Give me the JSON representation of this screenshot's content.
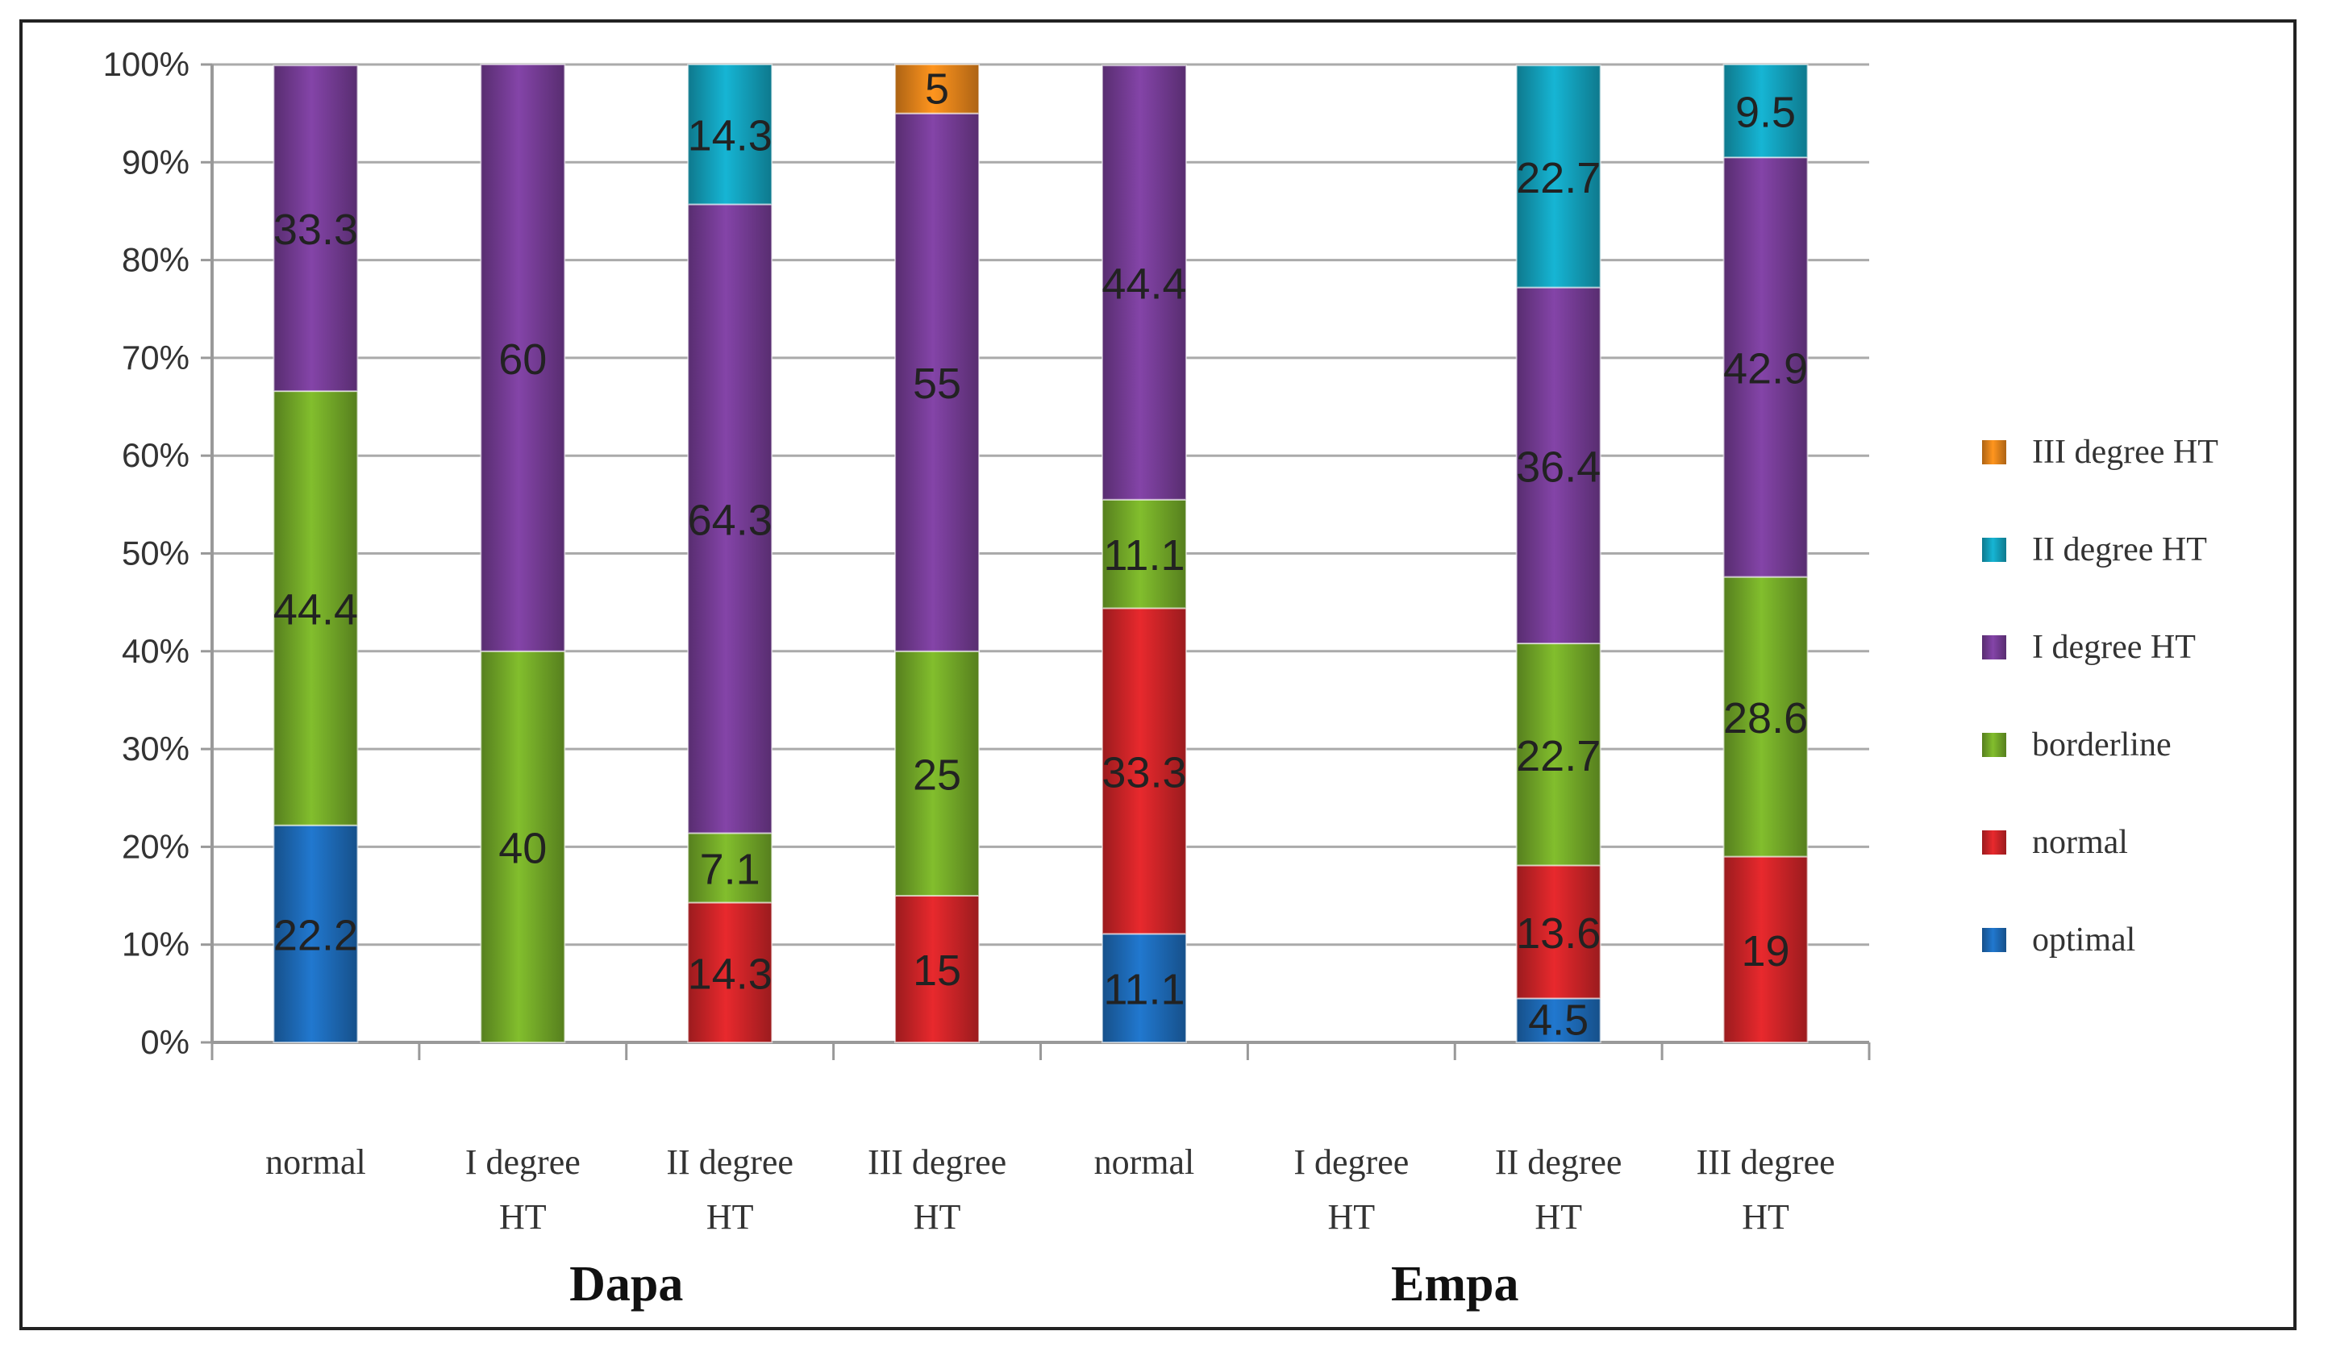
{
  "chart_data": {
    "type": "bar",
    "stacked": true,
    "percent": true,
    "yticks": [
      "0%",
      "10%",
      "20%",
      "30%",
      "40%",
      "50%",
      "60%",
      "70%",
      "80%",
      "90%",
      "100%"
    ],
    "ylim": [
      0,
      100
    ],
    "groups": [
      {
        "name": "Dapa",
        "categories": [
          [
            "normal"
          ],
          [
            "I degree",
            "HT"
          ],
          [
            "II degree",
            "HT"
          ],
          [
            "III degree",
            "HT"
          ]
        ]
      },
      {
        "name": "Empa",
        "categories": [
          [
            "normal"
          ],
          [
            "I degree",
            "HT"
          ],
          [
            "II degree",
            "HT"
          ],
          [
            "III degree",
            "HT"
          ]
        ]
      }
    ],
    "series": [
      {
        "name": "optimal",
        "color": "#1f6fc0",
        "values": [
          22.2,
          0,
          0,
          0,
          11.1,
          0,
          4.5,
          0
        ]
      },
      {
        "name": "normal",
        "color": "#d7262a",
        "values": [
          0,
          0,
          14.3,
          15,
          33.3,
          0,
          13.6,
          19
        ]
      },
      {
        "name": "borderline",
        "color": "#78b02a",
        "values": [
          44.4,
          40,
          7.1,
          25,
          11.1,
          0,
          22.7,
          28.6
        ]
      },
      {
        "name": "I degree HT",
        "color": "#7a3f9c",
        "values": [
          33.3,
          60,
          64.3,
          55,
          44.4,
          0,
          36.4,
          42.9
        ]
      },
      {
        "name": "II degree HT",
        "color": "#14a8c4",
        "values": [
          0,
          0,
          14.3,
          0,
          0,
          0,
          22.7,
          9.5
        ]
      },
      {
        "name": "III degree HT",
        "color": "#f08a1c",
        "values": [
          0,
          0,
          0,
          5,
          0,
          0,
          0,
          0
        ]
      }
    ],
    "labels": [
      [
        "22.2",
        "",
        "44.4",
        "33.3",
        "",
        ""
      ],
      [
        "",
        "",
        "40",
        "60",
        "",
        ""
      ],
      [
        "",
        "14.3",
        "7.1",
        "64.3",
        "14.3",
        ""
      ],
      [
        "",
        "15",
        "25",
        "55",
        "",
        "5"
      ],
      [
        "11.1",
        "33.3",
        "11.1",
        "44.4",
        "",
        ""
      ],
      [
        "",
        "",
        "",
        "",
        "",
        ""
      ],
      [
        "4.5",
        "13.6",
        "22.7",
        "36.4",
        "22.7",
        ""
      ],
      [
        "",
        "19",
        "28.6",
        "42.9",
        "9.5",
        ""
      ]
    ],
    "legend_position": "right"
  }
}
